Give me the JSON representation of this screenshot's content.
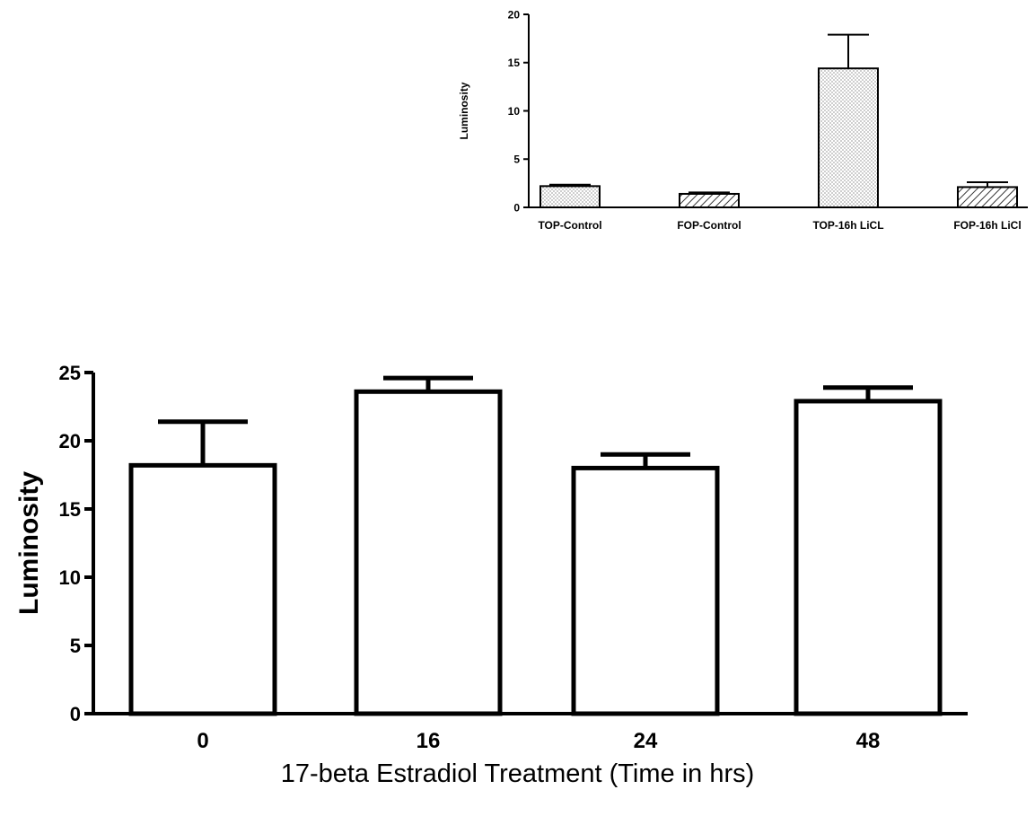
{
  "chart_data": [
    {
      "type": "bar",
      "title": "",
      "xlabel": "",
      "ylabel": "Luminosity",
      "categories": [
        "TOP-Control",
        "FOP-Control",
        "TOP-16h LiCL",
        "FOP-16h LiCl"
      ],
      "values": [
        2.2,
        1.4,
        14.4,
        2.1
      ],
      "errors": [
        0.15,
        0.15,
        3.5,
        0.5
      ],
      "patterns": [
        "dots",
        "hatch",
        "dots",
        "hatch"
      ],
      "yticks": [
        "0",
        "5",
        "10",
        "15",
        "20"
      ],
      "ylim": [
        0,
        20
      ],
      "grid": false,
      "legend": "none"
    },
    {
      "type": "bar",
      "title": "",
      "xlabel": "17-beta Estradiol Treatment (Time in hrs)",
      "ylabel": "Luminosity",
      "categories": [
        "0",
        "16",
        "24",
        "48"
      ],
      "values": [
        18.2,
        23.6,
        18.0,
        22.9
      ],
      "errors": [
        3.2,
        1.0,
        1.0,
        1.0
      ],
      "yticks": [
        "0",
        "5",
        "10",
        "15",
        "20",
        "25"
      ],
      "ylim": [
        0,
        25
      ],
      "grid": false,
      "legend": "none"
    }
  ]
}
